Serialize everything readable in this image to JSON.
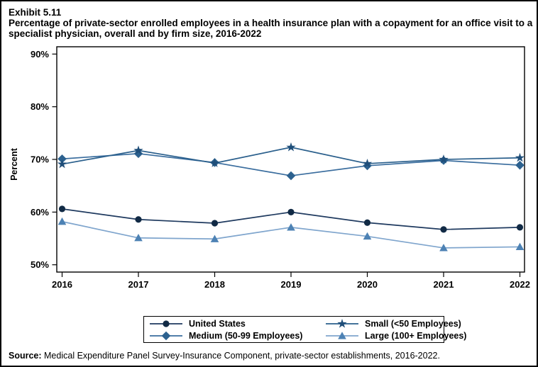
{
  "header": {
    "exhibit": "Exhibit 5.11",
    "title": "Percentage of private-sector enrolled employees in a health insurance plan with a copayment for an office visit to a specialist physician, overall and by firm size, 2016-2022"
  },
  "chart_data": {
    "type": "line",
    "x": [
      2016,
      2017,
      2018,
      2019,
      2020,
      2021,
      2022
    ],
    "xlabel": "",
    "ylabel": "Percent",
    "ylim": [
      50,
      90
    ],
    "yticks": [
      50,
      60,
      70,
      80,
      90
    ],
    "ytick_suffix": "%",
    "grid": false,
    "legend_position": "bottom",
    "frame_color": "#000000",
    "series": [
      {
        "name": "United States",
        "marker": "circle",
        "line_color": "#1f3a5f",
        "marker_color": "#112a45",
        "values": [
          60.6,
          58.6,
          57.9,
          60.0,
          58.0,
          56.7,
          57.1
        ]
      },
      {
        "name": "Small (<50 Employees)",
        "marker": "star",
        "line_color": "#2a5f8c",
        "marker_color": "#1f4e79",
        "values": [
          69.1,
          71.7,
          69.3,
          72.3,
          69.2,
          70.0,
          70.3
        ]
      },
      {
        "name": "Medium (50-99 Employees)",
        "marker": "diamond",
        "line_color": "#3a6d9e",
        "marker_color": "#2c618f",
        "values": [
          70.1,
          71.1,
          69.4,
          66.9,
          68.8,
          69.8,
          68.9
        ]
      },
      {
        "name": "Large (100+ Employees)",
        "marker": "triangle",
        "line_color": "#7fa5cd",
        "marker_color": "#4d82b4",
        "values": [
          58.2,
          55.1,
          54.9,
          57.1,
          55.4,
          53.2,
          53.4
        ]
      }
    ]
  },
  "legend": {
    "items": [
      {
        "label": "United States",
        "series": 0
      },
      {
        "label": "Small (<50 Employees)",
        "series": 1
      },
      {
        "label": "Medium (50-99 Employees)",
        "series": 2
      },
      {
        "label": "Large (100+ Employees)",
        "series": 3
      }
    ]
  },
  "source": {
    "prefix": "Source:",
    "text": " Medical Expenditure Panel Survey-Insurance Component, private-sector establishments, 2016-2022."
  }
}
